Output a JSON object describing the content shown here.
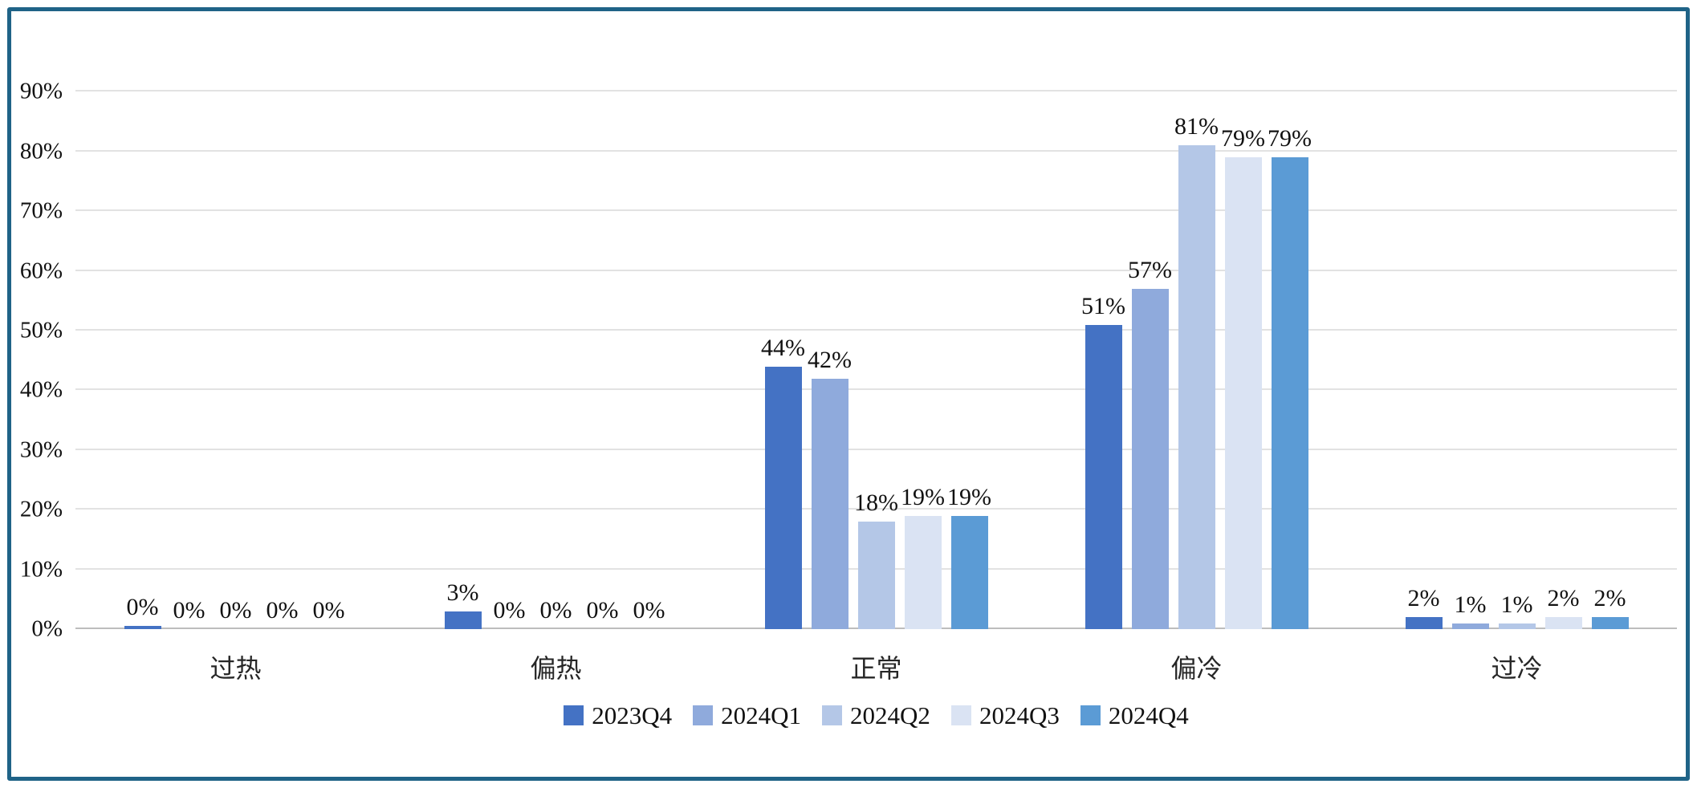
{
  "frame": {
    "border_color": "#1F6387",
    "background_color": "#FFFFFF"
  },
  "chart_data": {
    "type": "bar",
    "title": "",
    "xlabel": "",
    "ylabel": "",
    "categories": [
      "过热",
      "偏热",
      "正常",
      "偏冷",
      "过冷"
    ],
    "series": [
      {
        "name": "2023Q4",
        "color": "#4472C4",
        "values": [
          0.5,
          3,
          44,
          51,
          2
        ],
        "labels": [
          "0%",
          "3%",
          "44%",
          "51%",
          "2%"
        ]
      },
      {
        "name": "2024Q1",
        "color": "#8FAADC",
        "values": [
          0,
          0,
          42,
          57,
          1
        ],
        "labels": [
          "0%",
          "0%",
          "42%",
          "57%",
          "1%"
        ]
      },
      {
        "name": "2024Q2",
        "color": "#B4C7E7",
        "values": [
          0,
          0,
          18,
          81,
          1
        ],
        "labels": [
          "0%",
          "0%",
          "18%",
          "81%",
          "1%"
        ]
      },
      {
        "name": "2024Q3",
        "color": "#DAE3F3",
        "values": [
          0,
          0,
          19,
          79,
          2
        ],
        "labels": [
          "0%",
          "0%",
          "19%",
          "79%",
          "2%"
        ]
      },
      {
        "name": "2024Q4",
        "color": "#5B9BD5",
        "values": [
          0,
          0,
          19,
          79,
          2
        ],
        "labels": [
          "0%",
          "0%",
          "19%",
          "79%",
          "2%"
        ]
      }
    ],
    "y_ticks": [
      "0%",
      "10%",
      "20%",
      "30%",
      "40%",
      "50%",
      "60%",
      "70%",
      "80%",
      "90%"
    ],
    "ylim": [
      0,
      90
    ],
    "grid": true,
    "gridline_color": "#E2E2E2",
    "axis_line_color": "#BDBDBD",
    "legend_position": "bottom"
  }
}
